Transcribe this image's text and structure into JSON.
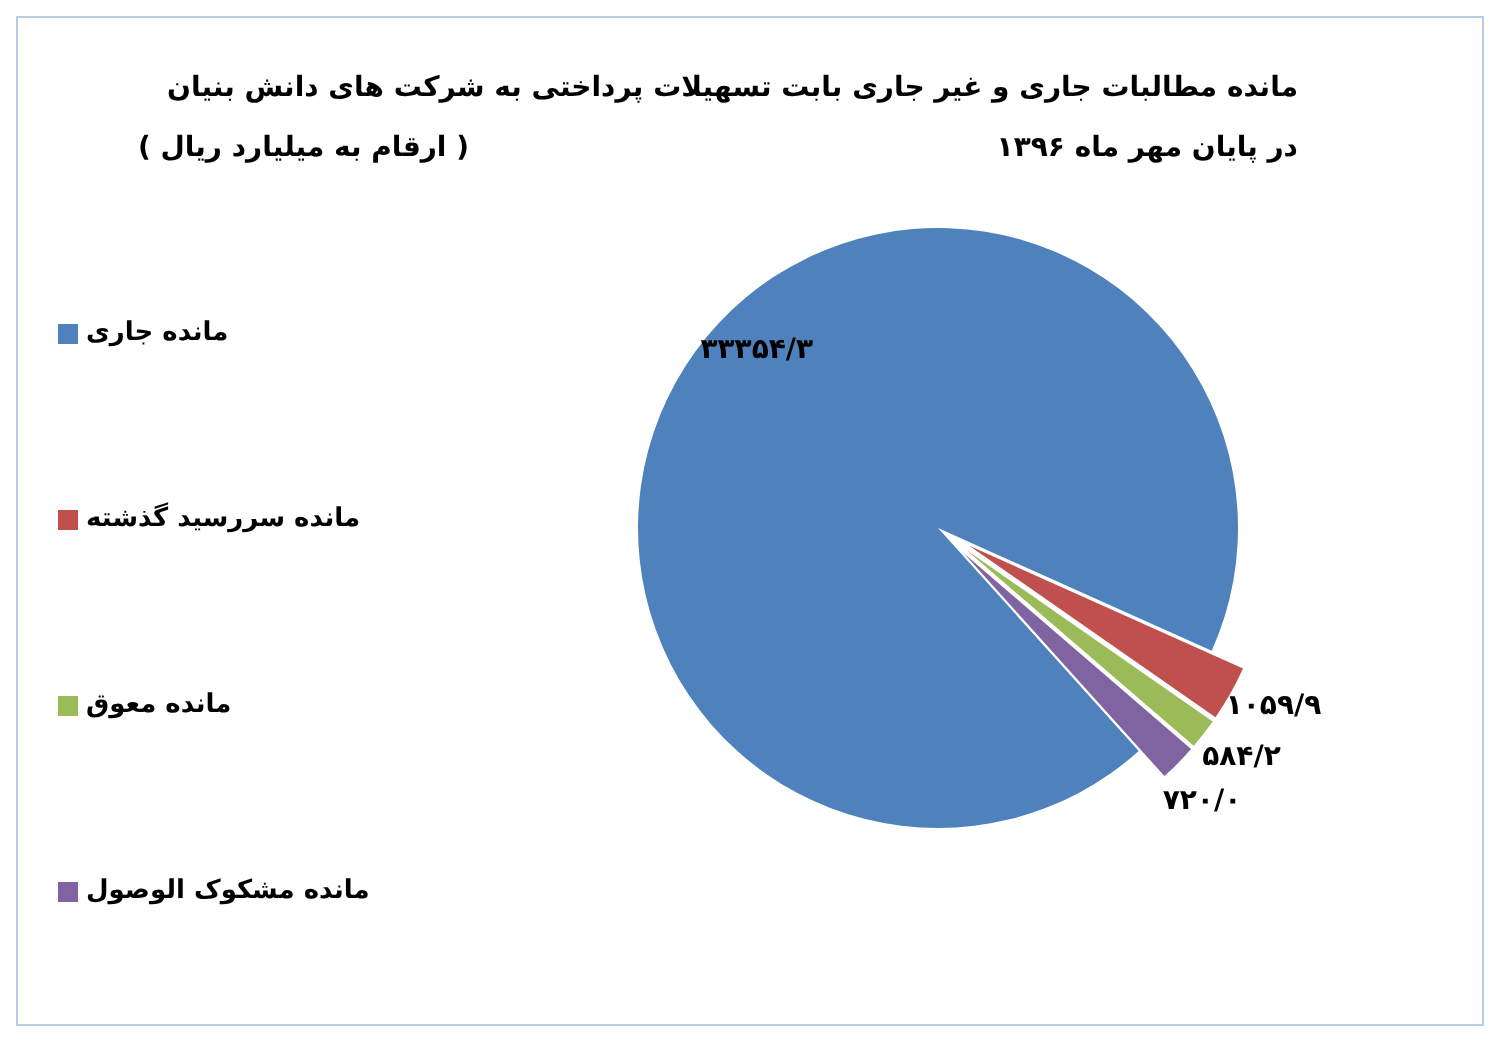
{
  "chart_data": {
    "type": "pie",
    "title": "مانده مطالبات جاری و غیر جاری بابت تسهیلات پرداختی به شرکت های دانش بنیان در پایان  مهر ماه ۱۳۹۶",
    "subtitle": "( ارقام به میلیارد ریال )",
    "categories": [
      "مانده جاری",
      "مانده سررسید گذشته",
      "مانده معوق",
      "مانده مشکوک الوصول"
    ],
    "values": [
      33354.3,
      1059.9,
      584.2,
      720.0
    ],
    "value_labels": [
      "۳۳۳۵۴/۳",
      "۱۰۵۹/۹",
      "۵۸۴/۲",
      "۷۲۰/۰"
    ],
    "colors": [
      "#4f81bd",
      "#c0504d",
      "#9bbb59",
      "#8064a2"
    ],
    "legend": "left"
  }
}
